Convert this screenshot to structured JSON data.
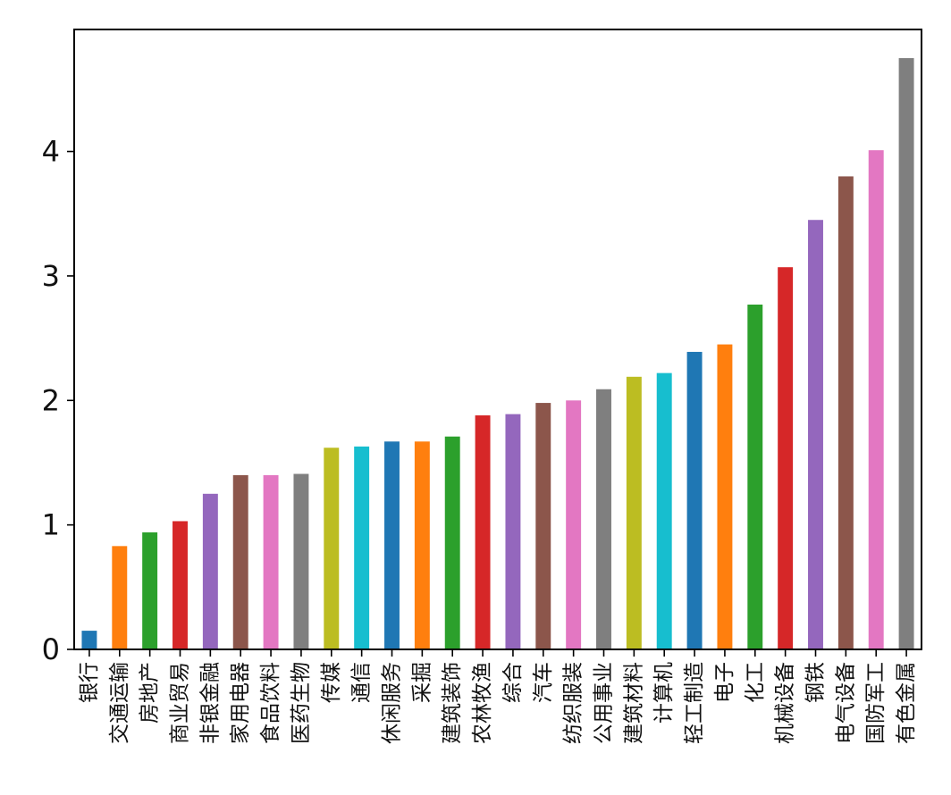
{
  "chart_data": {
    "type": "bar",
    "title": "",
    "xlabel": "",
    "ylabel": "",
    "ylim": [
      0,
      4.98
    ],
    "yticks": [
      0,
      1,
      2,
      3,
      4
    ],
    "legend": "none",
    "grid": false,
    "categories": [
      "银行",
      "交通运输",
      "房地产",
      "商业贸易",
      "非银金融",
      "家用电器",
      "食品饮料",
      "医药生物",
      "传媒",
      "通信",
      "休闲服务",
      "采掘",
      "建筑装饰",
      "农林牧渔",
      "综合",
      "汽车",
      "纺织服装",
      "公用事业",
      "建筑材料",
      "计算机",
      "轻工制造",
      "电子",
      "化工",
      "机械设备",
      "钢铁",
      "电气设备",
      "国防军工",
      "有色金属"
    ],
    "values": [
      0.15,
      0.83,
      0.94,
      1.03,
      1.25,
      1.4,
      1.4,
      1.41,
      1.62,
      1.63,
      1.67,
      1.67,
      1.71,
      1.88,
      1.89,
      1.98,
      2.0,
      2.09,
      2.19,
      2.22,
      2.39,
      2.45,
      2.77,
      3.07,
      3.45,
      3.8,
      4.01,
      4.75
    ],
    "colors": [
      "#1f77b4",
      "#ff7f0e",
      "#2ca02c",
      "#d62728",
      "#9467bd",
      "#8c564b",
      "#e377c2",
      "#7f7f7f",
      "#bcbd22",
      "#17becf"
    ]
  }
}
